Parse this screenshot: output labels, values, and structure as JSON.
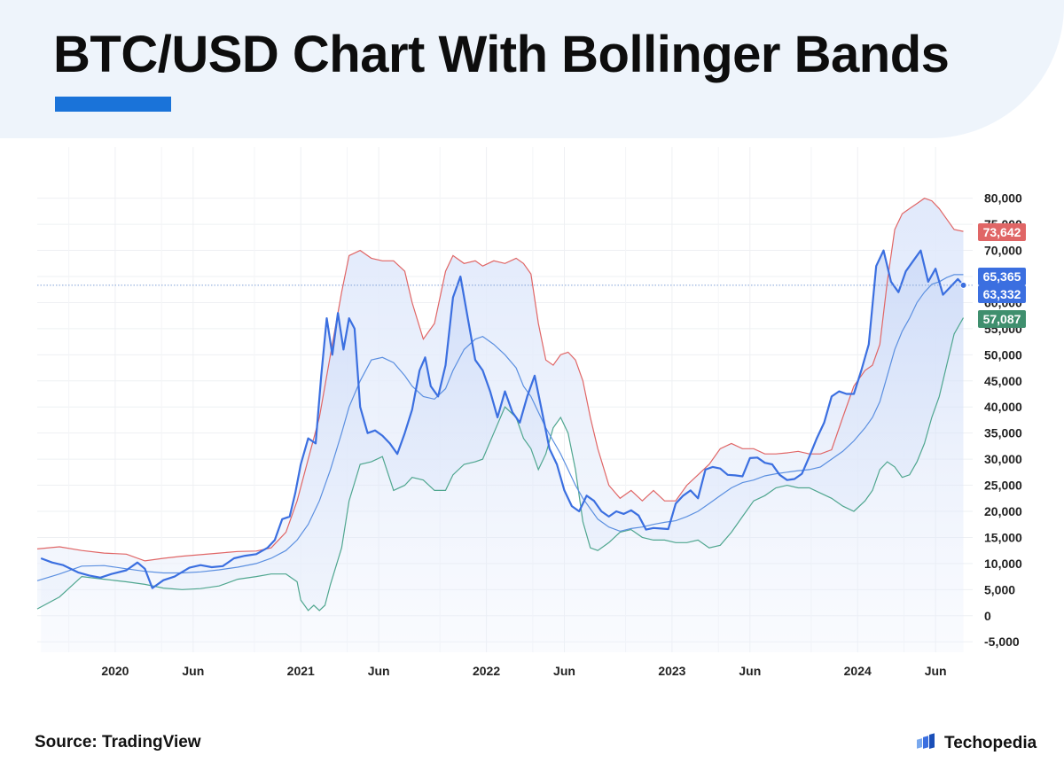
{
  "title": "BTC/USD Chart With Bollinger Bands",
  "source": "Source: TradingView",
  "brand": {
    "name": "Techopedia",
    "icon": "techopedia-logo-icon"
  },
  "colors": {
    "accent": "#1a73d9",
    "price": "#3b6fe0",
    "upper": "#e06666",
    "lower": "#4fa68f",
    "middle": "#5b8fe0",
    "upper_badge": "#e06666",
    "price_badge": "#3b6fe0",
    "lower_badge": "#3f8f6e"
  },
  "chart_data": {
    "type": "line",
    "title": "",
    "xlabel": "",
    "ylabel": "",
    "x_ticks": [
      "2020",
      "Jun",
      "2021",
      "Jun",
      "2022",
      "Jun",
      "2023",
      "Jun",
      "2024",
      "Jun"
    ],
    "x_tick_positions": [
      2020.0,
      2020.42,
      2021.0,
      2021.42,
      2022.0,
      2022.42,
      2023.0,
      2023.42,
      2024.0,
      2024.42
    ],
    "xlim": [
      2019.58,
      2024.62
    ],
    "y_ticks": [
      -5000,
      0,
      5000,
      10000,
      15000,
      20000,
      25000,
      30000,
      35000,
      40000,
      45000,
      50000,
      55000,
      60000,
      65000,
      70000,
      75000,
      80000
    ],
    "ylim": [
      -7000,
      83000
    ],
    "grid": true,
    "current_price_line": 63332,
    "value_labels": [
      {
        "series": "upper",
        "value": "73,642"
      },
      {
        "series": "price",
        "value": "65,365"
      },
      {
        "series": "price",
        "value": "63,332"
      },
      {
        "series": "lower",
        "value": "57,087"
      }
    ],
    "series": [
      {
        "key": "price",
        "x": [
          2019.6,
          2019.66,
          2019.72,
          2019.8,
          2019.86,
          2019.92,
          2019.98,
          2020.06,
          2020.12,
          2020.16,
          2020.2,
          2020.26,
          2020.32,
          2020.4,
          2020.46,
          2020.52,
          2020.58,
          2020.64,
          2020.7,
          2020.76,
          2020.82,
          2020.86,
          2020.9,
          2020.94,
          2020.97,
          2021.0,
          2021.04,
          2021.08,
          2021.11,
          2021.14,
          2021.17,
          2021.2,
          2021.23,
          2021.26,
          2021.29,
          2021.32,
          2021.36,
          2021.4,
          2021.44,
          2021.48,
          2021.52,
          2021.56,
          2021.6,
          2021.64,
          2021.67,
          2021.7,
          2021.74,
          2021.78,
          2021.82,
          2021.86,
          2021.9,
          2021.94,
          2021.98,
          2022.02,
          2022.06,
          2022.1,
          2022.14,
          2022.18,
          2022.22,
          2022.26,
          2022.3,
          2022.34,
          2022.38,
          2022.42,
          2022.46,
          2022.5,
          2022.54,
          2022.58,
          2022.62,
          2022.66,
          2022.7,
          2022.74,
          2022.78,
          2022.82,
          2022.86,
          2022.9,
          2022.94,
          2022.98,
          2023.02,
          2023.06,
          2023.1,
          2023.14,
          2023.18,
          2023.22,
          2023.26,
          2023.3,
          2023.34,
          2023.38,
          2023.42,
          2023.46,
          2023.5,
          2023.54,
          2023.58,
          2023.62,
          2023.66,
          2023.7,
          2023.74,
          2023.78,
          2023.82,
          2023.86,
          2023.9,
          2023.94,
          2023.98,
          2024.02,
          2024.06,
          2024.1,
          2024.14,
          2024.18,
          2024.22,
          2024.26,
          2024.3,
          2024.34,
          2024.38,
          2024.42,
          2024.46,
          2024.5,
          2024.54,
          2024.57
        ],
        "values": [
          11000,
          10200,
          9700,
          8300,
          7700,
          7300,
          8000,
          8700,
          10200,
          9000,
          5300,
          6800,
          7500,
          9200,
          9700,
          9300,
          9500,
          11000,
          11500,
          11800,
          13000,
          14500,
          18500,
          19000,
          23500,
          29000,
          34000,
          33000,
          46000,
          57000,
          50000,
          58000,
          51000,
          57000,
          55000,
          40000,
          35000,
          35500,
          34500,
          33000,
          31000,
          35000,
          39500,
          47000,
          49500,
          44000,
          42000,
          48000,
          61000,
          65000,
          57000,
          49000,
          47000,
          43000,
          38000,
          43000,
          39000,
          37000,
          42000,
          46000,
          39000,
          32000,
          29000,
          24000,
          21000,
          20000,
          23000,
          22000,
          20000,
          19000,
          20000,
          19500,
          20200,
          19200,
          16500,
          16800,
          16700,
          16600,
          21500,
          23000,
          24000,
          22500,
          28000,
          28500,
          28200,
          27000,
          26900,
          26700,
          30200,
          30300,
          29300,
          29000,
          27000,
          26000,
          26200,
          27200,
          30500,
          34000,
          37000,
          42000,
          43000,
          42500,
          42500,
          47000,
          52000,
          67000,
          70000,
          64000,
          62000,
          66000,
          68000,
          70000,
          64000,
          66500,
          61500,
          63000,
          64500,
          63332
        ]
      },
      {
        "key": "upper",
        "x": [
          2019.58,
          2019.7,
          2019.82,
          2019.94,
          2020.06,
          2020.16,
          2020.26,
          2020.36,
          2020.46,
          2020.56,
          2020.66,
          2020.76,
          2020.84,
          2020.92,
          2020.98,
          2021.04,
          2021.1,
          2021.16,
          2021.22,
          2021.26,
          2021.32,
          2021.38,
          2021.44,
          2021.5,
          2021.56,
          2021.6,
          2021.66,
          2021.72,
          2021.78,
          2021.82,
          2021.88,
          2021.94,
          2021.98,
          2022.04,
          2022.1,
          2022.16,
          2022.2,
          2022.24,
          2022.28,
          2022.32,
          2022.36,
          2022.4,
          2022.44,
          2022.48,
          2022.52,
          2022.56,
          2022.6,
          2022.66,
          2022.72,
          2022.78,
          2022.84,
          2022.9,
          2022.96,
          2023.02,
          2023.08,
          2023.14,
          2023.2,
          2023.26,
          2023.32,
          2023.38,
          2023.44,
          2023.5,
          2023.56,
          2023.62,
          2023.68,
          2023.74,
          2023.8,
          2023.86,
          2023.92,
          2023.98,
          2024.04,
          2024.08,
          2024.12,
          2024.16,
          2024.2,
          2024.24,
          2024.28,
          2024.32,
          2024.36,
          2024.4,
          2024.44,
          2024.48,
          2024.52,
          2024.57
        ],
        "values": [
          12800,
          13200,
          12500,
          12000,
          11800,
          10500,
          11000,
          11400,
          11700,
          12000,
          12300,
          12400,
          13000,
          16000,
          22000,
          30000,
          38000,
          50000,
          62000,
          69000,
          70000,
          68500,
          68000,
          68000,
          66000,
          60000,
          53000,
          56000,
          66000,
          69000,
          67500,
          68000,
          67000,
          68000,
          67500,
          68500,
          67500,
          65500,
          56000,
          49000,
          48000,
          50000,
          50500,
          49000,
          45000,
          38000,
          32000,
          25000,
          22500,
          24000,
          22000,
          24000,
          22000,
          22000,
          25000,
          27000,
          29000,
          32000,
          33000,
          32000,
          32000,
          31000,
          31000,
          31200,
          31500,
          31000,
          31000,
          31800,
          38000,
          44000,
          47000,
          48000,
          52000,
          64000,
          74000,
          77000,
          78000,
          79000,
          80000,
          79500,
          78000,
          76000,
          74000,
          73642
        ]
      },
      {
        "key": "middle",
        "x": [
          2019.58,
          2019.7,
          2019.82,
          2019.94,
          2020.06,
          2020.16,
          2020.26,
          2020.36,
          2020.46,
          2020.56,
          2020.66,
          2020.76,
          2020.84,
          2020.92,
          2020.98,
          2021.04,
          2021.1,
          2021.16,
          2021.22,
          2021.26,
          2021.32,
          2021.38,
          2021.44,
          2021.5,
          2021.56,
          2021.6,
          2021.66,
          2021.72,
          2021.78,
          2021.82,
          2021.88,
          2021.94,
          2021.98,
          2022.04,
          2022.1,
          2022.16,
          2022.2,
          2022.24,
          2022.28,
          2022.32,
          2022.36,
          2022.4,
          2022.44,
          2022.48,
          2022.52,
          2022.56,
          2022.6,
          2022.66,
          2022.72,
          2022.78,
          2022.84,
          2022.9,
          2022.96,
          2023.02,
          2023.08,
          2023.14,
          2023.2,
          2023.26,
          2023.32,
          2023.38,
          2023.44,
          2023.5,
          2023.56,
          2023.62,
          2023.68,
          2023.74,
          2023.8,
          2023.86,
          2023.92,
          2023.98,
          2024.04,
          2024.08,
          2024.12,
          2024.16,
          2024.2,
          2024.24,
          2024.28,
          2024.32,
          2024.36,
          2024.4,
          2024.44,
          2024.48,
          2024.52,
          2024.57
        ],
        "values": [
          6700,
          8000,
          9500,
          9600,
          9000,
          8500,
          8200,
          8200,
          8400,
          8800,
          9300,
          10000,
          11000,
          12500,
          14500,
          17500,
          22000,
          28000,
          35000,
          40000,
          45000,
          49000,
          49500,
          48500,
          46000,
          44000,
          42000,
          41500,
          43500,
          47000,
          51000,
          53000,
          53500,
          52000,
          50000,
          47500,
          44000,
          42000,
          39000,
          36000,
          33500,
          31000,
          28000,
          25000,
          22500,
          20500,
          18500,
          17000,
          16200,
          16700,
          17000,
          17500,
          17900,
          18200,
          19000,
          20000,
          21500,
          23000,
          24500,
          25500,
          26000,
          26800,
          27200,
          27500,
          27800,
          28000,
          28500,
          30000,
          31500,
          33500,
          36000,
          38000,
          41000,
          46000,
          51000,
          54500,
          57000,
          60000,
          62000,
          63500,
          64000,
          64800,
          65365,
          65365
        ]
      },
      {
        "key": "lower",
        "x": [
          2019.58,
          2019.7,
          2019.82,
          2019.94,
          2020.06,
          2020.16,
          2020.26,
          2020.36,
          2020.46,
          2020.56,
          2020.66,
          2020.76,
          2020.84,
          2020.92,
          2020.98,
          2021.0,
          2021.04,
          2021.07,
          2021.1,
          2021.13,
          2021.16,
          2021.22,
          2021.26,
          2021.32,
          2021.38,
          2021.44,
          2021.5,
          2021.56,
          2021.6,
          2021.66,
          2021.72,
          2021.78,
          2021.82,
          2021.88,
          2021.94,
          2021.98,
          2022.04,
          2022.1,
          2022.16,
          2022.2,
          2022.24,
          2022.28,
          2022.32,
          2022.36,
          2022.4,
          2022.44,
          2022.48,
          2022.52,
          2022.56,
          2022.6,
          2022.66,
          2022.72,
          2022.78,
          2022.84,
          2022.9,
          2022.96,
          2023.02,
          2023.08,
          2023.14,
          2023.2,
          2023.26,
          2023.32,
          2023.38,
          2023.44,
          2023.5,
          2023.56,
          2023.62,
          2023.68,
          2023.74,
          2023.8,
          2023.86,
          2023.92,
          2023.98,
          2024.04,
          2024.08,
          2024.12,
          2024.16,
          2024.2,
          2024.24,
          2024.28,
          2024.32,
          2024.36,
          2024.4,
          2024.44,
          2024.48,
          2024.52,
          2024.57
        ],
        "values": [
          1300,
          3600,
          7500,
          7000,
          6500,
          6000,
          5300,
          5000,
          5200,
          5700,
          7000,
          7500,
          8000,
          8000,
          6500,
          3000,
          1000,
          2000,
          1000,
          2000,
          6000,
          13000,
          22000,
          29000,
          29500,
          30500,
          24000,
          25000,
          26500,
          26000,
          24000,
          24000,
          27000,
          29000,
          29500,
          30000,
          35000,
          40000,
          38000,
          34000,
          32000,
          28000,
          31000,
          36000,
          38000,
          35000,
          28000,
          18000,
          13000,
          12500,
          14000,
          16000,
          16500,
          15000,
          14500,
          14500,
          14000,
          14000,
          14500,
          13000,
          13500,
          16000,
          19000,
          22000,
          23000,
          24500,
          25000,
          24500,
          24500,
          23500,
          22500,
          21000,
          20000,
          22000,
          24000,
          28000,
          29500,
          28500,
          26500,
          27000,
          29500,
          33000,
          38000,
          42000,
          48000,
          54000,
          57087
        ]
      }
    ]
  }
}
